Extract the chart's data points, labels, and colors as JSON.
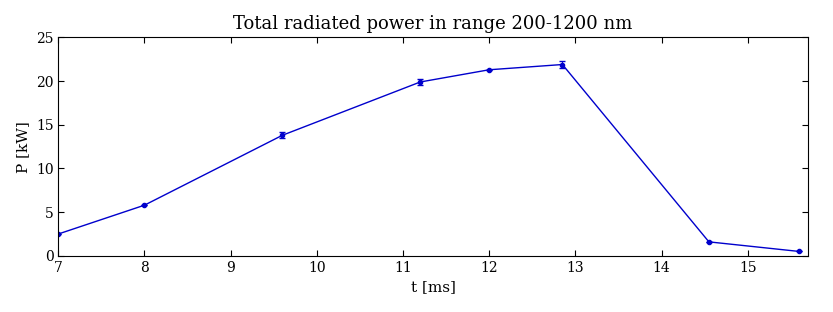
{
  "title": "Total radiated power in range 200-1200 nm",
  "xlabel": "t [ms]",
  "ylabel": "P [kW]",
  "x": [
    7.0,
    8.0,
    9.6,
    11.2,
    12.0,
    12.85,
    14.55,
    15.6
  ],
  "y": [
    2.5,
    5.8,
    13.8,
    19.9,
    21.3,
    21.9,
    1.6,
    0.5
  ],
  "yerr": [
    0.0,
    0.0,
    0.35,
    0.35,
    0.0,
    0.35,
    0.0,
    0.0
  ],
  "line_color": "#0000cc",
  "markersize": 3,
  "linewidth": 1.0,
  "capsize": 2,
  "elinewidth": 0.8,
  "xlim": [
    7,
    15.7
  ],
  "ylim": [
    0,
    25
  ],
  "xticks": [
    7,
    8,
    9,
    10,
    11,
    12,
    13,
    14,
    15
  ],
  "yticks": [
    0,
    5,
    10,
    15,
    20,
    25
  ],
  "background_color": "#ffffff",
  "title_fontsize": 13,
  "label_fontsize": 11,
  "tick_fontsize": 10
}
